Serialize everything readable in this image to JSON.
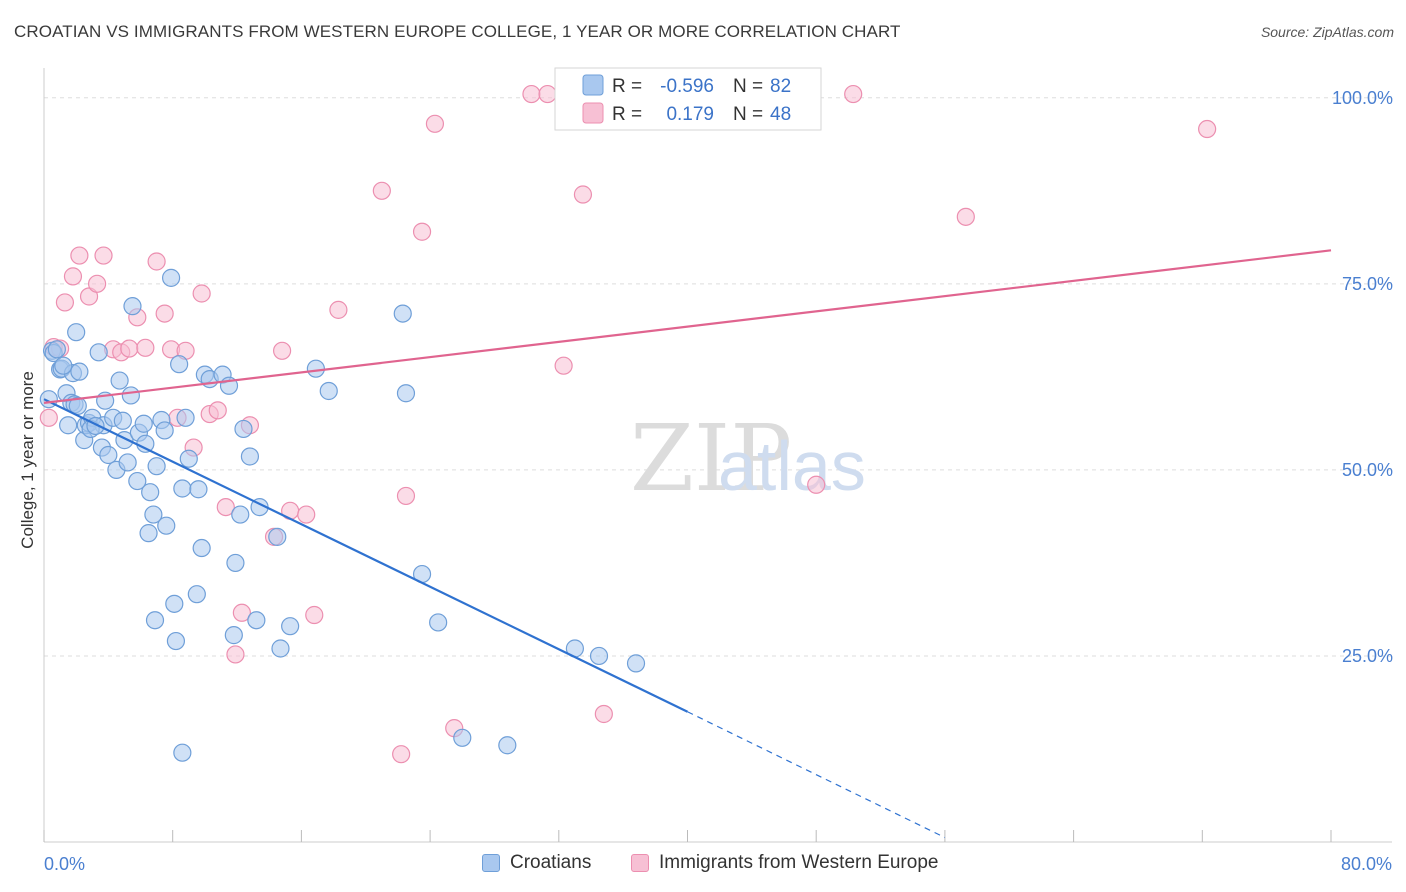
{
  "header": {
    "title": "CROATIAN VS IMMIGRANTS FROM WESTERN EUROPE COLLEGE, 1 YEAR OR MORE CORRELATION CHART",
    "source": "Source: ZipAtlas.com"
  },
  "watermark": {
    "zip": "ZIP",
    "atlas": "atlas"
  },
  "chart_data": {
    "type": "scatter",
    "ylabel": "College, 1 year or more",
    "xlim": [
      0,
      80
    ],
    "ylim": [
      0,
      104
    ],
    "x_tick_labels": [
      "0.0%",
      "80.0%"
    ],
    "y_ticks": [
      25,
      50,
      75,
      100
    ],
    "y_tick_labels": [
      "25.0%",
      "50.0%",
      "75.0%",
      "100.0%"
    ],
    "legend": {
      "rows": [
        {
          "r_label": "R =",
          "r_value": "-0.596",
          "n_label": "N =",
          "n_value": "82"
        },
        {
          "r_label": "R =",
          "r_value": "0.179",
          "n_label": "N =",
          "n_value": "48"
        }
      ]
    },
    "series": [
      {
        "name": "Croatians",
        "color": "#6f9fd8",
        "fill": "#a9c8ef",
        "line_color": "#2f72d0",
        "trend": {
          "x0": 0,
          "y0": 59.5,
          "x1": 40,
          "y1": 17.5,
          "dash_x1": 56,
          "dash_y1": 0.6
        },
        "points": [
          [
            0.3,
            59.5
          ],
          [
            0.5,
            66
          ],
          [
            0.6,
            65.7
          ],
          [
            1,
            63.5
          ],
          [
            1.1,
            63.6
          ],
          [
            1.5,
            56
          ],
          [
            1.4,
            60.3
          ],
          [
            1.7,
            59
          ],
          [
            1.8,
            63
          ],
          [
            2,
            68.5
          ],
          [
            2.2,
            63.2
          ],
          [
            2.5,
            54
          ],
          [
            2.6,
            56
          ],
          [
            2.8,
            56.3
          ],
          [
            3,
            57
          ],
          [
            3.4,
            65.8
          ],
          [
            3.6,
            53
          ],
          [
            3.7,
            56
          ],
          [
            3.8,
            59.3
          ],
          [
            4,
            52
          ],
          [
            4.3,
            57
          ],
          [
            4.5,
            50
          ],
          [
            4.7,
            62
          ],
          [
            5,
            54
          ],
          [
            5.2,
            51
          ],
          [
            5.4,
            60
          ],
          [
            5.5,
            72
          ],
          [
            5.8,
            48.5
          ],
          [
            5.9,
            55
          ],
          [
            6.2,
            56.2
          ],
          [
            6.3,
            53.5
          ],
          [
            6.5,
            41.5
          ],
          [
            6.6,
            47
          ],
          [
            6.8,
            44
          ],
          [
            7,
            50.5
          ],
          [
            7.3,
            56.7
          ],
          [
            7.5,
            55.3
          ],
          [
            7.6,
            42.5
          ],
          [
            7.9,
            75.8
          ],
          [
            8.1,
            32
          ],
          [
            8.2,
            27
          ],
          [
            8.4,
            64.2
          ],
          [
            8.6,
            47.5
          ],
          [
            8.8,
            57
          ],
          [
            9,
            51.5
          ],
          [
            9.5,
            33.3
          ],
          [
            9.6,
            47.4
          ],
          [
            9.8,
            39.5
          ],
          [
            10,
            62.8
          ],
          [
            10.3,
            62.2
          ],
          [
            11.1,
            62.8
          ],
          [
            11.5,
            61.3
          ],
          [
            11.8,
            27.8
          ],
          [
            11.9,
            37.5
          ],
          [
            12.2,
            44
          ],
          [
            12.4,
            55.5
          ],
          [
            12.8,
            51.8
          ],
          [
            13.2,
            29.8
          ],
          [
            13.4,
            45
          ],
          [
            14.5,
            41
          ],
          [
            14.7,
            26
          ],
          [
            15.3,
            29
          ],
          [
            16.9,
            63.6
          ],
          [
            17.7,
            60.6
          ],
          [
            22.3,
            71
          ],
          [
            22.5,
            60.3
          ],
          [
            23.5,
            36
          ],
          [
            24.5,
            29.5
          ],
          [
            6.9,
            29.8
          ],
          [
            8.6,
            12
          ],
          [
            26,
            14
          ],
          [
            28.8,
            13
          ],
          [
            33,
            26
          ],
          [
            34.5,
            25
          ],
          [
            36.8,
            24
          ],
          [
            0.8,
            66.2
          ],
          [
            1.9,
            58.8
          ],
          [
            2.9,
            55.5
          ],
          [
            4.9,
            56.6
          ],
          [
            2.1,
            58.6
          ],
          [
            3.2,
            55.9
          ],
          [
            1.2,
            64
          ]
        ]
      },
      {
        "name": "Immigrants from Western Europe",
        "color": "#ec8fb0",
        "fill": "#f7c0d4",
        "line_color": "#e0648f",
        "trend": {
          "x0": 0,
          "y0": 59,
          "x1": 80,
          "y1": 79.5
        },
        "points": [
          [
            0.3,
            57
          ],
          [
            0.6,
            66.5
          ],
          [
            1,
            66.3
          ],
          [
            1.3,
            72.5
          ],
          [
            1.8,
            76
          ],
          [
            2.2,
            78.8
          ],
          [
            2.8,
            73.3
          ],
          [
            3.3,
            75
          ],
          [
            3.7,
            78.8
          ],
          [
            4.3,
            66.2
          ],
          [
            4.8,
            65.8
          ],
          [
            5.3,
            66.3
          ],
          [
            5.8,
            70.5
          ],
          [
            6.3,
            66.4
          ],
          [
            7,
            78
          ],
          [
            7.5,
            71
          ],
          [
            7.9,
            66.2
          ],
          [
            8.3,
            57
          ],
          [
            8.8,
            66
          ],
          [
            9.3,
            53
          ],
          [
            9.8,
            73.7
          ],
          [
            10.3,
            57.5
          ],
          [
            10.8,
            58
          ],
          [
            11.3,
            45
          ],
          [
            11.9,
            25.2
          ],
          [
            12.3,
            30.8
          ],
          [
            12.8,
            56
          ],
          [
            14.3,
            41
          ],
          [
            14.8,
            66
          ],
          [
            15.3,
            44.5
          ],
          [
            16.3,
            44
          ],
          [
            16.8,
            30.5
          ],
          [
            18.3,
            71.5
          ],
          [
            21,
            87.5
          ],
          [
            22.2,
            11.8
          ],
          [
            22.5,
            46.5
          ],
          [
            23.5,
            82
          ],
          [
            24.3,
            96.5
          ],
          [
            25.5,
            15.3
          ],
          [
            30.3,
            100.5
          ],
          [
            31.3,
            100.5
          ],
          [
            32.3,
            64
          ],
          [
            33.5,
            87
          ],
          [
            34.8,
            17.2
          ],
          [
            48,
            48
          ],
          [
            50.3,
            100.5
          ],
          [
            57.3,
            84
          ],
          [
            72.3,
            95.8
          ]
        ]
      }
    ]
  },
  "bottom_legend": {
    "items": [
      "Croatians",
      "Immigrants from Western Europe"
    ]
  }
}
